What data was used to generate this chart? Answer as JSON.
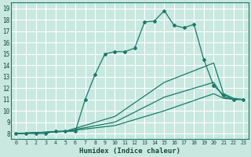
{
  "xlabel": "Humidex (Indice chaleur)",
  "bg_color": "#c8e8e0",
  "grid_color": "#ffffff",
  "line_color": "#1a7a6a",
  "xlim": [
    -0.5,
    23.5
  ],
  "ylim": [
    7.5,
    19.5
  ],
  "xticks": [
    0,
    1,
    2,
    3,
    4,
    5,
    6,
    7,
    8,
    9,
    10,
    11,
    12,
    13,
    14,
    15,
    16,
    17,
    18,
    19,
    20,
    21,
    22,
    23
  ],
  "yticks": [
    8,
    9,
    10,
    11,
    12,
    13,
    14,
    15,
    16,
    17,
    18,
    19
  ],
  "curve1_x": [
    0,
    1,
    2,
    3,
    4,
    5,
    6,
    7,
    8,
    9,
    10,
    11,
    12,
    13,
    14,
    15,
    16,
    17,
    18,
    19,
    20,
    21,
    22,
    23
  ],
  "curve1_y": [
    8.0,
    8.0,
    8.0,
    8.0,
    8.2,
    8.2,
    8.2,
    11.0,
    13.2,
    15.0,
    15.2,
    15.2,
    15.5,
    17.8,
    17.9,
    18.8,
    17.5,
    17.3,
    17.6,
    14.5,
    12.2,
    11.4,
    11.0,
    11.0
  ],
  "curve2_x": [
    0,
    5,
    10,
    15,
    20,
    21,
    22,
    23
  ],
  "curve2_y": [
    8.0,
    8.2,
    9.5,
    12.5,
    14.2,
    11.5,
    11.1,
    11.0
  ],
  "curve3_x": [
    0,
    5,
    10,
    15,
    20,
    21,
    22,
    23
  ],
  "curve3_y": [
    8.0,
    8.2,
    9.0,
    11.2,
    12.5,
    11.2,
    11.0,
    11.0
  ],
  "curve4_x": [
    0,
    5,
    10,
    15,
    20,
    21,
    22,
    23
  ],
  "curve4_y": [
    8.0,
    8.2,
    8.7,
    10.0,
    11.5,
    11.1,
    11.0,
    11.0
  ]
}
